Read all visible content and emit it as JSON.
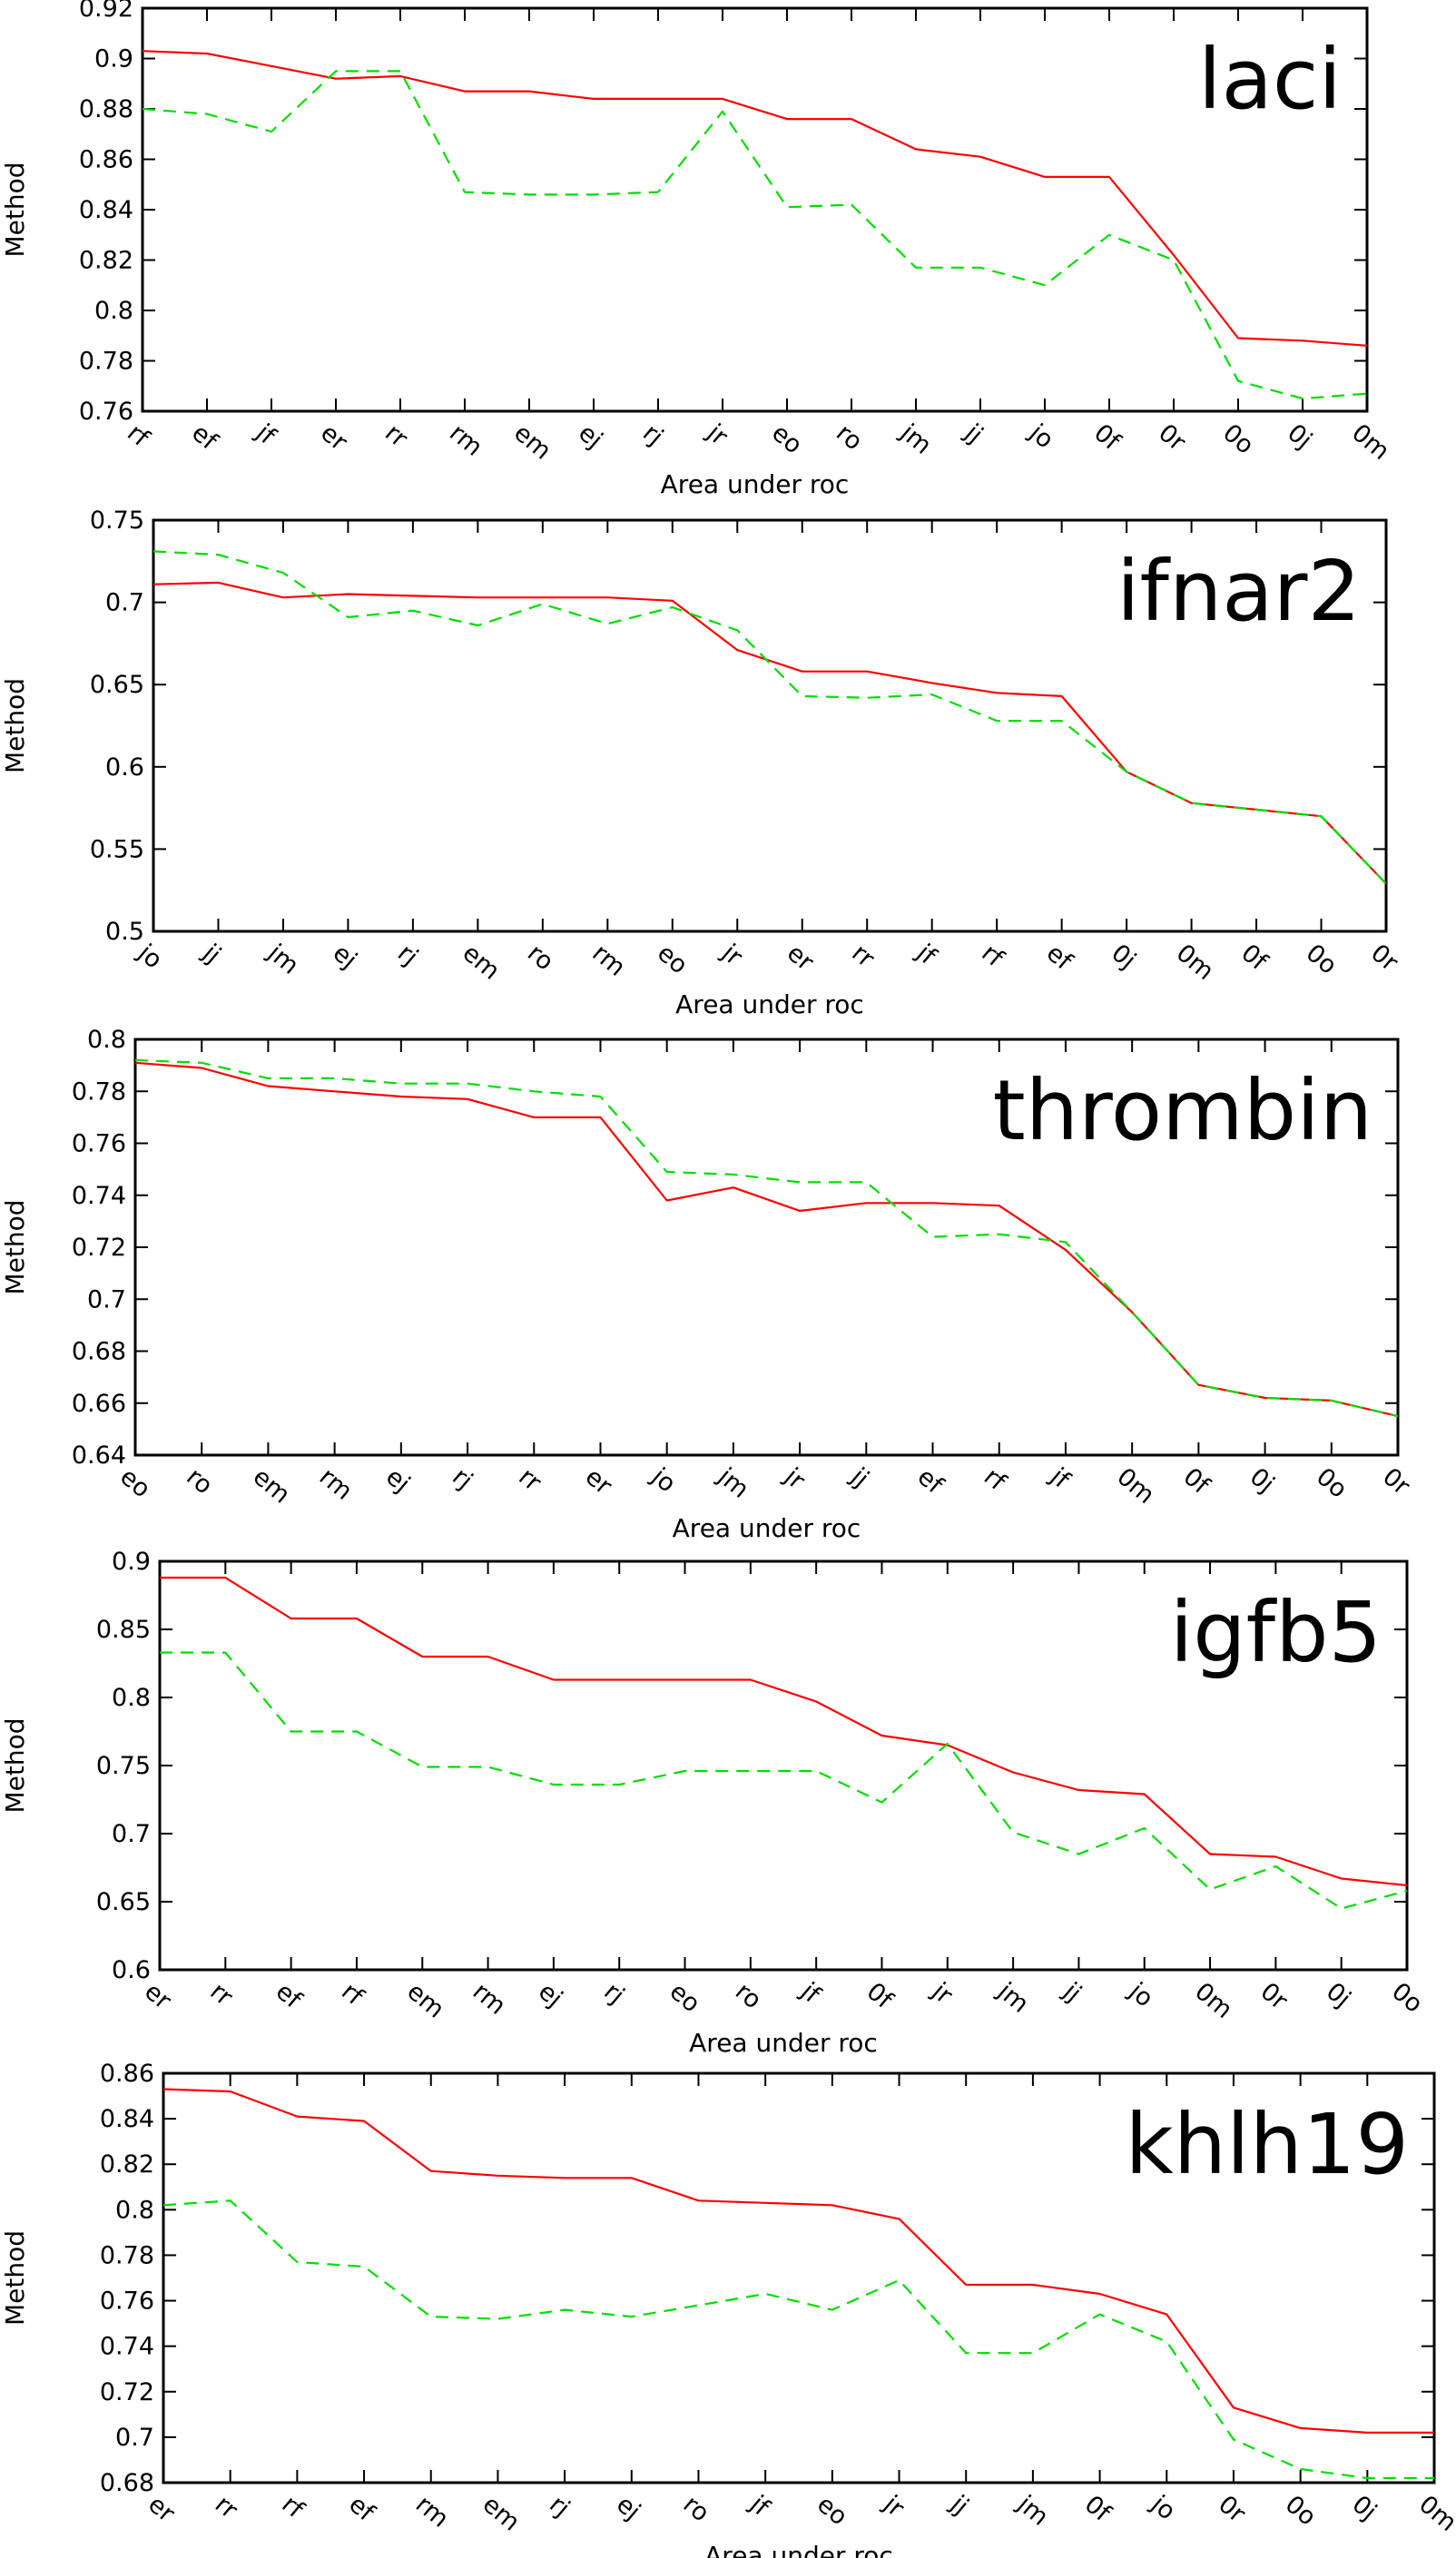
{
  "figure": {
    "colors": {
      "solid": "#ff0000",
      "dashed": "#00dd00",
      "frame": "#000000"
    }
  },
  "chart_data": [
    {
      "type": "line",
      "title": "laci",
      "xlabel": "Area under roc",
      "ylabel": "Method",
      "categories": [
        "rf",
        "ef",
        "jf",
        "er",
        "rr",
        "rm",
        "em",
        "ej",
        "rj",
        "jr",
        "eo",
        "ro",
        "jm",
        "jj",
        "jo",
        "0f",
        "0r",
        "0o",
        "0j",
        "0m"
      ],
      "ylim": [
        0.76,
        0.92
      ],
      "yticks": [
        0.76,
        0.78,
        0.8,
        0.82,
        0.84,
        0.86,
        0.88,
        0.9,
        0.92
      ],
      "ytick_labels": [
        "0.76",
        "0.78",
        "0.8",
        "0.82",
        "0.84",
        "0.86",
        "0.88",
        "0.9",
        "0.92"
      ],
      "grid": false,
      "legend": "none",
      "series": [
        {
          "style": "solid",
          "color": "#ff0000",
          "values": [
            0.903,
            0.902,
            0.897,
            0.892,
            0.893,
            0.887,
            0.887,
            0.884,
            0.884,
            0.884,
            0.876,
            0.876,
            0.864,
            0.861,
            0.853,
            0.853,
            0.822,
            0.789,
            0.788,
            0.786
          ]
        },
        {
          "style": "dashed",
          "color": "#00dd00",
          "values": [
            0.88,
            0.878,
            0.871,
            0.895,
            0.895,
            0.847,
            0.846,
            0.846,
            0.847,
            0.879,
            0.841,
            0.842,
            0.817,
            0.817,
            0.81,
            0.83,
            0.82,
            0.772,
            0.765,
            0.767
          ]
        }
      ]
    },
    {
      "type": "line",
      "title": "ifnar2",
      "xlabel": "Area under roc",
      "ylabel": "Method",
      "categories": [
        "jo",
        "jj",
        "jm",
        "ej",
        "rj",
        "em",
        "ro",
        "rm",
        "eo",
        "jr",
        "er",
        "rr",
        "jf",
        "rf",
        "ef",
        "0j",
        "0m",
        "0f",
        "0o",
        "0r"
      ],
      "ylim": [
        0.5,
        0.75
      ],
      "yticks": [
        0.5,
        0.55,
        0.6,
        0.65,
        0.7,
        0.75
      ],
      "ytick_labels": [
        "0.5",
        "0.55",
        "0.6",
        "0.65",
        "0.7",
        "0.75"
      ],
      "grid": false,
      "legend": "none",
      "series": [
        {
          "style": "solid",
          "color": "#ff0000",
          "values": [
            0.711,
            0.712,
            0.703,
            0.705,
            0.704,
            0.703,
            0.703,
            0.703,
            0.701,
            0.671,
            0.658,
            0.658,
            0.651,
            0.645,
            0.643,
            0.597,
            0.578,
            0.574,
            0.57,
            0.529
          ]
        },
        {
          "style": "dashed",
          "color": "#00dd00",
          "values": [
            0.731,
            0.729,
            0.718,
            0.691,
            0.695,
            0.686,
            0.699,
            0.687,
            0.697,
            0.683,
            0.643,
            0.642,
            0.644,
            0.628,
            0.628,
            0.597,
            0.578,
            0.574,
            0.57,
            0.529
          ]
        }
      ]
    },
    {
      "type": "line",
      "title": "thrombin",
      "xlabel": "Area under roc",
      "ylabel": "Method",
      "categories": [
        "eo",
        "ro",
        "em",
        "rm",
        "ej",
        "rj",
        "rr",
        "er",
        "jo",
        "jm",
        "jr",
        "jj",
        "ef",
        "rf",
        "jf",
        "0m",
        "0f",
        "0j",
        "0o",
        "0r"
      ],
      "ylim": [
        0.64,
        0.8
      ],
      "yticks": [
        0.64,
        0.66,
        0.68,
        0.7,
        0.72,
        0.74,
        0.76,
        0.78,
        0.8
      ],
      "ytick_labels": [
        "0.64",
        "0.66",
        "0.68",
        "0.7",
        "0.72",
        "0.74",
        "0.76",
        "0.78",
        "0.8"
      ],
      "grid": false,
      "legend": "none",
      "series": [
        {
          "style": "solid",
          "color": "#ff0000",
          "values": [
            0.791,
            0.789,
            0.782,
            0.78,
            0.778,
            0.777,
            0.77,
            0.77,
            0.738,
            0.743,
            0.734,
            0.737,
            0.737,
            0.736,
            0.719,
            0.695,
            0.667,
            0.662,
            0.661,
            0.655
          ]
        },
        {
          "style": "dashed",
          "color": "#00dd00",
          "values": [
            0.792,
            0.791,
            0.785,
            0.785,
            0.783,
            0.783,
            0.78,
            0.778,
            0.749,
            0.748,
            0.745,
            0.745,
            0.724,
            0.725,
            0.722,
            0.695,
            0.667,
            0.662,
            0.661,
            0.655
          ]
        }
      ]
    },
    {
      "type": "line",
      "title": "igfb5",
      "xlabel": "Area under roc",
      "ylabel": "Method",
      "categories": [
        "er",
        "rr",
        "ef",
        "rf",
        "em",
        "rm",
        "ej",
        "rj",
        "eo",
        "ro",
        "jf",
        "0f",
        "jr",
        "jm",
        "jj",
        "jo",
        "0m",
        "0r",
        "0j",
        "0o"
      ],
      "ylim": [
        0.6,
        0.9
      ],
      "yticks": [
        0.6,
        0.65,
        0.7,
        0.75,
        0.8,
        0.85,
        0.9
      ],
      "ytick_labels": [
        "0.6",
        "0.65",
        "0.7",
        "0.75",
        "0.8",
        "0.85",
        "0.9"
      ],
      "grid": false,
      "legend": "none",
      "series": [
        {
          "style": "solid",
          "color": "#ff0000",
          "values": [
            0.888,
            0.888,
            0.858,
            0.858,
            0.83,
            0.83,
            0.813,
            0.813,
            0.813,
            0.813,
            0.797,
            0.772,
            0.765,
            0.745,
            0.732,
            0.729,
            0.685,
            0.683,
            0.667,
            0.662
          ]
        },
        {
          "style": "dashed",
          "color": "#00dd00",
          "values": [
            0.833,
            0.833,
            0.775,
            0.775,
            0.749,
            0.749,
            0.736,
            0.736,
            0.746,
            0.746,
            0.746,
            0.723,
            0.766,
            0.701,
            0.685,
            0.704,
            0.659,
            0.676,
            0.645,
            0.658
          ]
        }
      ]
    },
    {
      "type": "line",
      "title": "khlh19",
      "xlabel": "Area under roc",
      "ylabel": "Method",
      "categories": [
        "er",
        "rr",
        "rf",
        "ef",
        "rm",
        "em",
        "rj",
        "ej",
        "ro",
        "jf",
        "eo",
        "jr",
        "jj",
        "jm",
        "0f",
        "jo",
        "0r",
        "0o",
        "0j",
        "0m"
      ],
      "ylim": [
        0.68,
        0.86
      ],
      "yticks": [
        0.68,
        0.7,
        0.72,
        0.74,
        0.76,
        0.78,
        0.8,
        0.82,
        0.84,
        0.86
      ],
      "ytick_labels": [
        "0.68",
        "0.7",
        "0.72",
        "0.74",
        "0.76",
        "0.78",
        "0.8",
        "0.82",
        "0.84",
        "0.86"
      ],
      "grid": false,
      "legend": "none",
      "series": [
        {
          "style": "solid",
          "color": "#ff0000",
          "values": [
            0.853,
            0.852,
            0.841,
            0.839,
            0.817,
            0.815,
            0.814,
            0.814,
            0.804,
            0.803,
            0.802,
            0.796,
            0.767,
            0.767,
            0.763,
            0.754,
            0.713,
            0.704,
            0.702,
            0.702
          ]
        },
        {
          "style": "dashed",
          "color": "#00dd00",
          "values": [
            0.802,
            0.804,
            0.777,
            0.775,
            0.753,
            0.752,
            0.756,
            0.753,
            0.758,
            0.763,
            0.756,
            0.769,
            0.737,
            0.737,
            0.754,
            0.742,
            0.699,
            0.686,
            0.682,
            0.682
          ]
        }
      ]
    }
  ]
}
